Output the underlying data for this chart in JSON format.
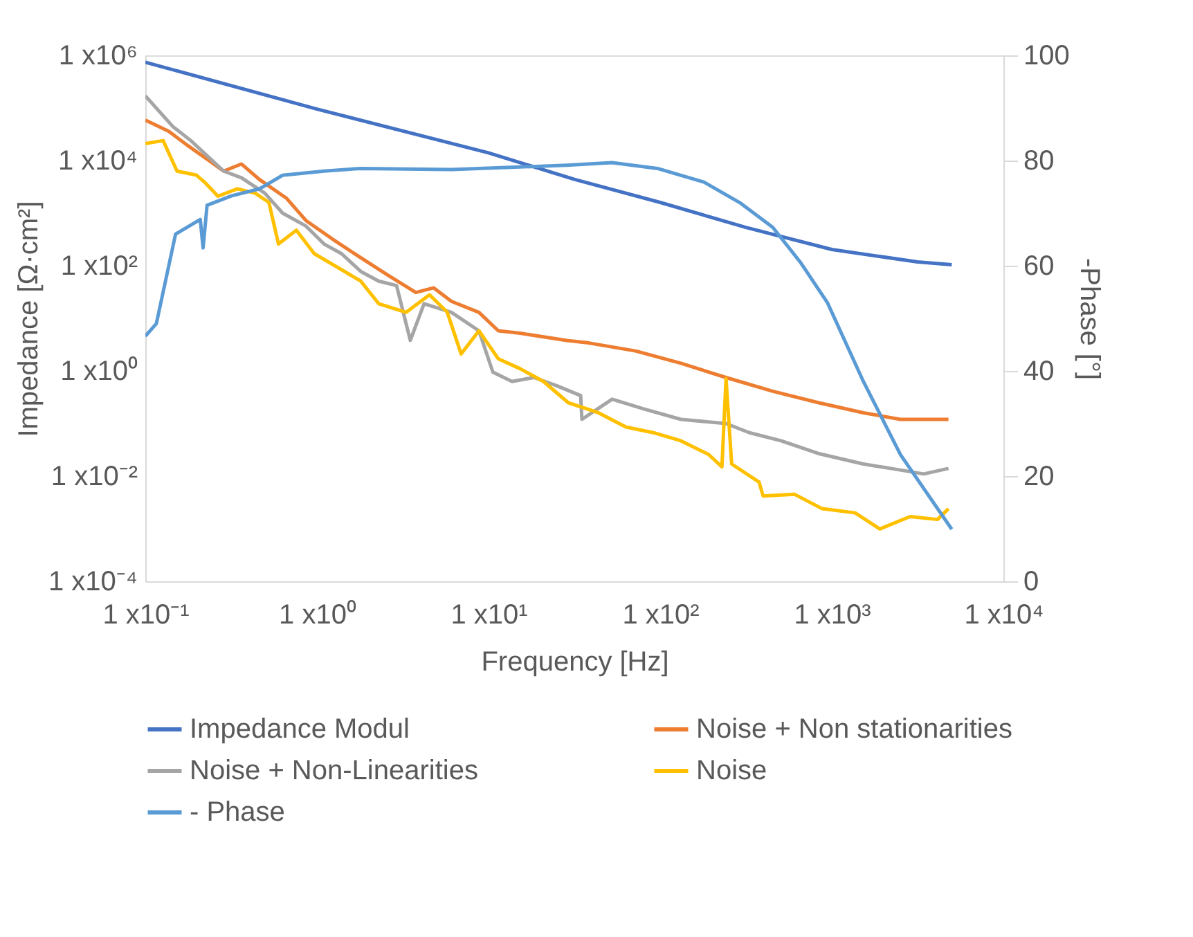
{
  "chart_data": {
    "type": "line",
    "xlabel": "Frequency [Hz]",
    "ylabel": "Impedance [Ω·cm²]",
    "y2label": "-Phase [°]",
    "log": "xy",
    "grid": false,
    "legend": "bottom",
    "line_style": "solid",
    "marker": "none",
    "xlim": [
      0.1,
      10000
    ],
    "xticks": [
      {
        "value": 0.1,
        "label": "1 x10⁻¹"
      },
      {
        "value": 1,
        "label": "1 x10⁰"
      },
      {
        "value": 10,
        "label": "1 x10¹"
      },
      {
        "value": 100,
        "label": "1 x10²"
      },
      {
        "value": 1000,
        "label": "1 x10³"
      },
      {
        "value": 10000,
        "label": "1 x10⁴"
      }
    ],
    "ylim": [
      0.0001,
      1000000
    ],
    "yticks": [
      {
        "value": 0.0001,
        "label": "1 x10⁻⁴"
      },
      {
        "value": 0.01,
        "label": "1 x10⁻²"
      },
      {
        "value": 1,
        "label": "1 x10⁰"
      },
      {
        "value": 100,
        "label": "1 x10²"
      },
      {
        "value": 10000,
        "label": "1 x10⁴"
      },
      {
        "value": 1000000,
        "label": "1 x10⁶"
      }
    ],
    "y2lim": [
      0,
      100
    ],
    "y2ticks": [
      0,
      20,
      40,
      60,
      80,
      100
    ],
    "series": [
      {
        "name": "Impedance Modul",
        "color": "#4472c4",
        "x": [
          0.1,
          1,
          10,
          31.6,
          100,
          316,
          1000,
          3162,
          5000
        ],
        "values": [
          740000,
          95000,
          14000,
          4400,
          1600,
          535,
          204,
          118,
          105
        ]
      },
      {
        "name": "Noise + Non stationarities",
        "color": "#ed7d31",
        "x": [
          0.1,
          0.137,
          0.174,
          0.238,
          0.286,
          0.363,
          0.461,
          0.667,
          0.863,
          1.25,
          1.8,
          2.61,
          3.77,
          4.79,
          6.08,
          8.79,
          11.4,
          15.3,
          28.6,
          38.4,
          71.8,
          132,
          242,
          453,
          832,
          1528,
          2512,
          4786
        ],
        "values": [
          59000,
          36000,
          20000,
          9700,
          6300,
          8600,
          4400,
          1900,
          723,
          311,
          142,
          65,
          31,
          38,
          21,
          13,
          5.8,
          5.2,
          3.8,
          3.4,
          2.4,
          1.4,
          0.75,
          0.41,
          0.25,
          0.16,
          0.12,
          0.12
        ]
      },
      {
        "name": "Noise + Non-Linearities",
        "color": "#a5a5a5",
        "x": [
          0.1,
          0.145,
          0.184,
          0.286,
          0.363,
          0.497,
          0.631,
          0.863,
          1.1,
          1.39,
          1.8,
          2.29,
          2.91,
          3.5,
          4.21,
          6.08,
          8.79,
          10.6,
          13.7,
          18.4,
          25.1,
          34.4,
          35,
          52.5,
          80.2,
          132,
          242,
          331,
          506,
          832,
          1528,
          2208,
          3436,
          4786
        ],
        "values": [
          170000,
          44000,
          24000,
          6300,
          4700,
          2400,
          1000,
          568,
          259,
          170,
          78,
          51,
          42,
          3.8,
          19,
          13,
          5.8,
          0.95,
          0.63,
          0.75,
          0.52,
          0.34,
          0.12,
          0.29,
          0.19,
          0.12,
          0.1,
          0.067,
          0.047,
          0.027,
          0.017,
          0.014,
          0.011,
          0.014
        ]
      },
      {
        "name": "Noise",
        "color": "#ffc000",
        "x": [
          0.1,
          0.127,
          0.153,
          0.198,
          0.221,
          0.265,
          0.344,
          0.437,
          0.525,
          0.597,
          0.759,
          0.964,
          1.32,
          1.8,
          2.29,
          3.31,
          4.53,
          5.75,
          6.92,
          8.79,
          11.4,
          15.3,
          20.9,
          29.1,
          43.7,
          63.1,
          91.2,
          132,
          191,
          229,
          242,
          261,
          377,
          398,
          608,
          879,
          1368,
          1905,
          2858,
          4130,
          4786
        ],
        "values": [
          21000,
          24000,
          6300,
          5300,
          3900,
          2100,
          2900,
          2400,
          1600,
          259,
          474,
          170,
          93,
          51,
          19,
          13,
          28,
          13,
          2.1,
          5.8,
          1.7,
          1.1,
          0.63,
          0.25,
          0.16,
          0.086,
          0.067,
          0.047,
          0.026,
          0.015,
          0.71,
          0.017,
          0.0077,
          0.0042,
          0.0045,
          0.0024,
          0.002,
          0.00099,
          0.0017,
          0.0015,
          0.0024
        ]
      },
      {
        "name": "- Phase",
        "color": "#5b9bd5",
        "axis": "y2",
        "x": [
          0.1,
          0.116,
          0.15,
          0.209,
          0.217,
          0.229,
          0.319,
          0.461,
          0.631,
          1.1,
          1.8,
          6.08,
          28.6,
          52.5,
          96.4,
          180,
          291,
          453,
          655,
          946,
          1528,
          2512,
          5000
        ],
        "values": [
          46.6,
          49,
          66,
          68.8,
          63.4,
          71.5,
          73.3,
          74.6,
          77.2,
          78,
          78.5,
          78.3,
          79.1,
          79.6,
          78.5,
          75.9,
          72,
          67.3,
          60.7,
          52.9,
          38,
          24.1,
          9.9
        ]
      }
    ]
  }
}
